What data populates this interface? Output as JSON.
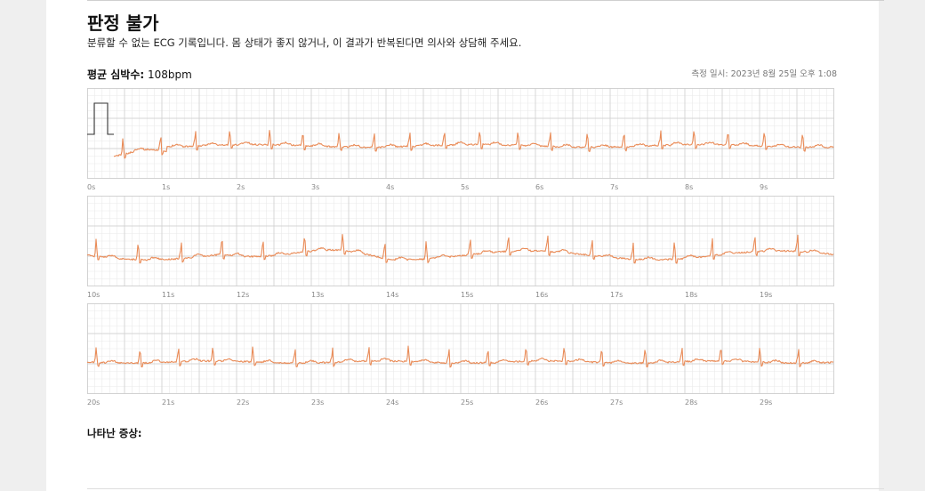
{
  "report": {
    "title": "판정 불가",
    "subtitle": "분류할 수 없는 ECG 기록입니다. 몸 상태가 좋지 않거나, 이 결과가 반복된다면 의사와 상담해 주세요.",
    "heart_rate_label": "평균 심박수:",
    "heart_rate_value": "108bpm",
    "measured_at": "측정 일시: 2023년 8월 25일 오후 1:08",
    "symptoms_label": "나타난 증상:"
  },
  "colors": {
    "trace": "#e98b57",
    "grid_major": "#cccccc",
    "grid_minor": "#e9e9e9",
    "calibration": "#333333"
  },
  "strips": [
    {
      "name": "ecg-strip-1",
      "start_second": 0,
      "end_second": 10,
      "tick_labels": [
        "0s",
        "1s",
        "2s",
        "3s",
        "4s",
        "5s",
        "6s",
        "7s",
        "8s",
        "9s"
      ],
      "calibration_pulse": true,
      "qrs_count": 20
    },
    {
      "name": "ecg-strip-2",
      "start_second": 10,
      "end_second": 20,
      "tick_labels": [
        "10s",
        "11s",
        "12s",
        "13s",
        "14s",
        "15s",
        "16s",
        "17s",
        "18s",
        "19s"
      ],
      "calibration_pulse": false,
      "qrs_count": 18
    },
    {
      "name": "ecg-strip-3",
      "start_second": 20,
      "end_second": 30,
      "tick_labels": [
        "20s",
        "21s",
        "22s",
        "23s",
        "24s",
        "25s",
        "26s",
        "27s",
        "28s",
        "29s"
      ],
      "calibration_pulse": false,
      "qrs_count": 19
    }
  ]
}
